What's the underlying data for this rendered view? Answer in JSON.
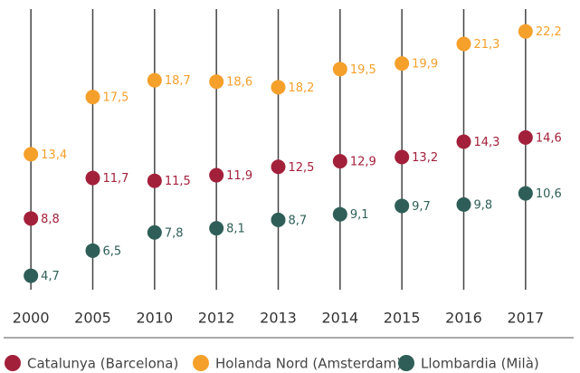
{
  "chart_data": {
    "type": "dot",
    "categories": [
      "2000",
      "2005",
      "2010",
      "2012",
      "2013",
      "2014",
      "2015",
      "2016",
      "2017"
    ],
    "series": [
      {
        "name": "Catalunya (Barcelona)",
        "color": "#a3203a",
        "values": [
          8.8,
          11.7,
          11.5,
          11.9,
          12.5,
          12.9,
          13.2,
          14.3,
          14.6
        ],
        "value_labels": [
          "8,8",
          "11,7",
          "11,5",
          "11,9",
          "12,5",
          "12,9",
          "13,2",
          "14,3",
          "14,6"
        ]
      },
      {
        "name": "Holanda Nord (Amsterdam)",
        "color": "#f5a02a",
        "values": [
          13.4,
          17.5,
          18.7,
          18.6,
          18.2,
          19.5,
          19.9,
          21.3,
          22.2
        ],
        "value_labels": [
          "13,4",
          "17,5",
          "18,7",
          "18,6",
          "18,2",
          "19,5",
          "19,9",
          "21,3",
          "22,2"
        ]
      },
      {
        "name": "Llombardia (Milà)",
        "color": "#2e5e57",
        "values": [
          4.7,
          6.5,
          7.8,
          8.1,
          8.7,
          9.1,
          9.7,
          9.8,
          10.6
        ],
        "value_labels": [
          "4,7",
          "6,5",
          "7,8",
          "8,1",
          "8,7",
          "9,1",
          "9,7",
          "9,8",
          "10,6"
        ]
      }
    ],
    "ylim": [
      3.7,
      23.8
    ],
    "legend": "bottom"
  }
}
